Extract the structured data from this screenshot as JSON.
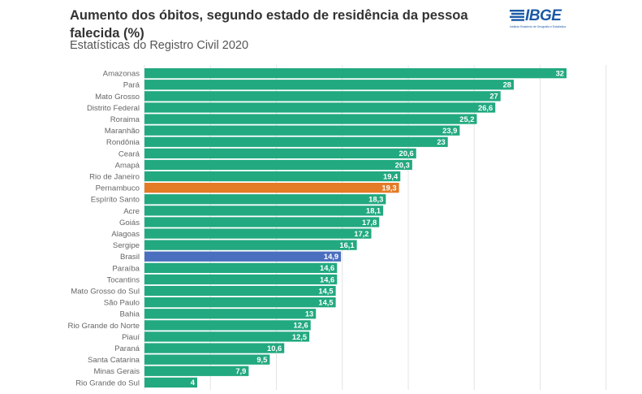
{
  "header": {
    "title": "Aumento dos óbitos, segundo estado de residência da pessoa falecida (%)",
    "subtitle": "Estatísticas do Registro Civil 2020",
    "logo_text": "IBGE",
    "logo_tagline": "Instituto Brasileiro de Geografia e Estatística"
  },
  "colors": {
    "default": "#22a97f",
    "highlight_state": "#e47b26",
    "national": "#4a6fbf",
    "logo": "#1b5aa6"
  },
  "chart_data": {
    "type": "bar",
    "orientation": "horizontal",
    "title": "Aumento dos óbitos, segundo estado de residência da pessoa falecida (%)",
    "subtitle": "Estatísticas do Registro Civil 2020",
    "xlabel": "",
    "ylabel": "",
    "xlim": [
      0,
      35
    ],
    "grid": true,
    "legend": "none",
    "categories": [
      "Amazonas",
      "Pará",
      "Mato Grosso",
      "Distrito Federal",
      "Roraima",
      "Maranhão",
      "Rondônia",
      "Ceará",
      "Amapá",
      "Rio de Janeiro",
      "Pernambuco",
      "Espírito Santo",
      "Acre",
      "Goiás",
      "Alagoas",
      "Sergipe",
      "Brasil",
      "Paraíba",
      "Tocantins",
      "Mato Grosso do Sul",
      "São Paulo",
      "Bahia",
      "Rio Grande do Norte",
      "Piauí",
      "Paraná",
      "Santa Catarina",
      "Minas Gerais",
      "Rio Grande do Sul"
    ],
    "values": [
      32,
      28,
      27,
      26.6,
      25.2,
      23.9,
      23,
      20.6,
      20.3,
      19.4,
      19.3,
      18.3,
      18.1,
      17.8,
      17.2,
      16.1,
      14.9,
      14.6,
      14.6,
      14.5,
      14.5,
      13,
      12.6,
      12.5,
      10.6,
      9.5,
      7.9,
      4
    ],
    "labels": [
      "32",
      "28",
      "27",
      "26,6",
      "25,2",
      "23,9",
      "23",
      "20,6",
      "20,3",
      "19,4",
      "19,3",
      "18,3",
      "18,1",
      "17,8",
      "17,2",
      "16,1",
      "14,9",
      "14,6",
      "14,6",
      "14,5",
      "14,5",
      "13",
      "12,6",
      "12,5",
      "10,6",
      "9,5",
      "7,9",
      "4"
    ],
    "highlights": {
      "Pernambuco": "highlight_state",
      "Brasil": "national"
    }
  }
}
